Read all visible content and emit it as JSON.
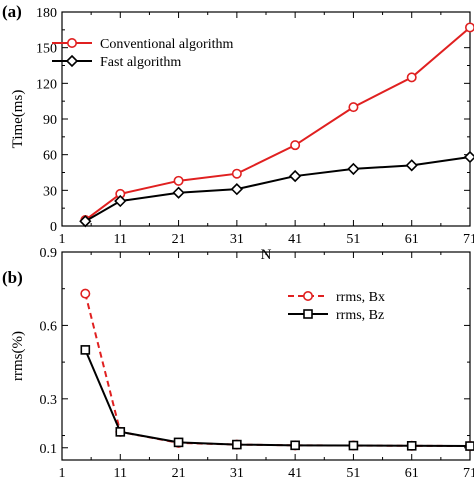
{
  "chart_data": [
    {
      "type": "line",
      "panel_label": "(a)",
      "xlabel": "N",
      "ylabel": "Time(ms)",
      "x": [
        1,
        11,
        21,
        31,
        41,
        51,
        61,
        71
      ],
      "xlim": [
        1,
        71
      ],
      "xticks": [
        "1",
        "11",
        "21",
        "31",
        "41",
        "51",
        "61",
        "71"
      ],
      "ylim": [
        0,
        180
      ],
      "yticks": [
        "0",
        "30",
        "60",
        "90",
        "120",
        "150",
        "180"
      ],
      "grid": false,
      "legend": "top-left",
      "series": [
        {
          "name": "Conventional algorithm",
          "color": "#e02020",
          "marker": "circle",
          "line": "solid",
          "points": [
            [
              5,
              5
            ],
            [
              11,
              27
            ],
            [
              21,
              38
            ],
            [
              31,
              44
            ],
            [
              41,
              68
            ],
            [
              51,
              100
            ],
            [
              61,
              125
            ],
            [
              71,
              167
            ]
          ]
        },
        {
          "name": "Fast algorithm",
          "color": "#000000",
          "marker": "diamond",
          "line": "solid",
          "points": [
            [
              5,
              4
            ],
            [
              11,
              21
            ],
            [
              21,
              28
            ],
            [
              31,
              31
            ],
            [
              41,
              42
            ],
            [
              51,
              48
            ],
            [
              61,
              51
            ],
            [
              71,
              58
            ]
          ]
        }
      ]
    },
    {
      "type": "line",
      "panel_label": "(b)",
      "xlabel": "N",
      "ylabel": "rrms(%)",
      "x": [
        1,
        11,
        21,
        31,
        41,
        51,
        61,
        71
      ],
      "xlim": [
        1,
        71
      ],
      "xticks": [
        "1",
        "11",
        "21",
        "31",
        "41",
        "51",
        "61",
        "71"
      ],
      "ylim": [
        0.05,
        0.9
      ],
      "yticks": [
        "0.1",
        "0.3",
        "0.6",
        "0.9"
      ],
      "ytick_values": [
        0.1,
        0.3,
        0.6,
        0.9
      ],
      "grid": false,
      "legend": "top-right",
      "series": [
        {
          "name": "rrms, Bx",
          "color": "#e02020",
          "marker": "circle",
          "line": "dashed",
          "points": [
            [
              5,
              0.73
            ],
            [
              11,
              0.165
            ],
            [
              21,
              0.12
            ],
            [
              31,
              0.113
            ],
            [
              41,
              0.11
            ],
            [
              51,
              0.109
            ],
            [
              61,
              0.108
            ],
            [
              71,
              0.107
            ]
          ]
        },
        {
          "name": "rrms, Bz",
          "color": "#000000",
          "marker": "square",
          "line": "solid",
          "points": [
            [
              5,
              0.5
            ],
            [
              11,
              0.165
            ],
            [
              21,
              0.122
            ],
            [
              31,
              0.113
            ],
            [
              41,
              0.11
            ],
            [
              51,
              0.109
            ],
            [
              61,
              0.108
            ],
            [
              71,
              0.107
            ]
          ]
        }
      ]
    }
  ]
}
